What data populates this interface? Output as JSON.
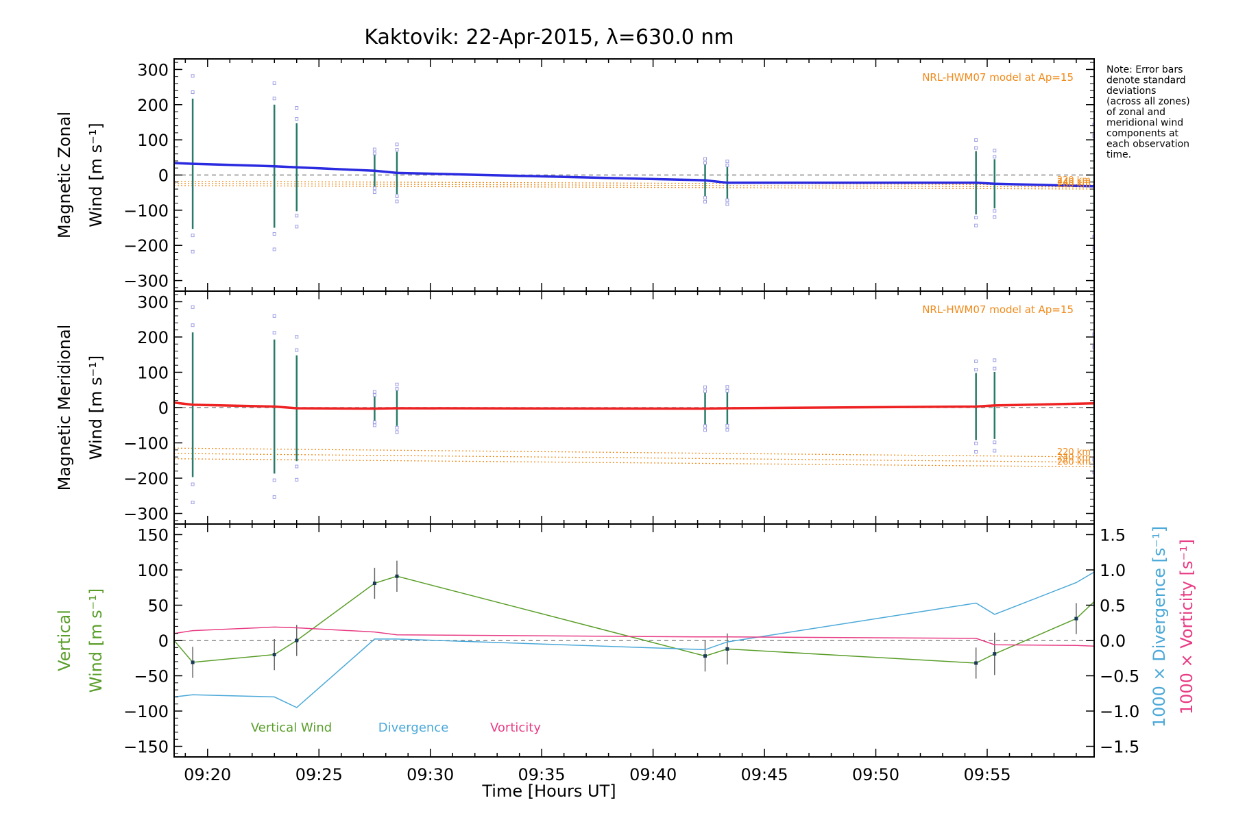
{
  "chart_data": {
    "type": "line",
    "title": "Kaktovik: 22-Apr-2015, λ=630.0 nm",
    "xlabel": "Time [Hours UT]",
    "xlim": [
      9.3083,
      9.9967
    ],
    "x_tick_labels": [
      {
        "x": 9.3333,
        "label": "09:20"
      },
      {
        "x": 9.4167,
        "label": "09:25"
      },
      {
        "x": 9.5,
        "label": "09:30"
      },
      {
        "x": 9.5833,
        "label": "09:35"
      },
      {
        "x": 9.6667,
        "label": "09:40"
      },
      {
        "x": 9.75,
        "label": "09:45"
      },
      {
        "x": 9.8333,
        "label": "09:50"
      },
      {
        "x": 9.9167,
        "label": "09:55"
      }
    ],
    "note": [
      "Note: Error bars",
      "denote standard",
      "deviations",
      "(across all zones)",
      "of zonal and",
      "meridional wind",
      "components at",
      "each observation",
      "time."
    ],
    "obs_times": [
      9.3222,
      9.3833,
      9.4,
      9.4583,
      9.475,
      9.7056,
      9.7222,
      9.9083,
      9.9222,
      9.9833
    ],
    "panels": [
      {
        "id": "zonal",
        "ylabel_lines": [
          "Magnetic Zonal",
          "Wind [m s⁻¹]"
        ],
        "ylim": [
          -330,
          330
        ],
        "y_ticks": [
          300,
          200,
          100,
          0,
          -100,
          -200,
          -300
        ],
        "model_label": "NRL-HWM07 model at Ap=15",
        "model_levels": [
          {
            "label": "220 km",
            "x": [
              9.3083,
              9.9967
            ],
            "y": [
              -18,
              -28
            ]
          },
          {
            "label": "240 km",
            "x": [
              9.3083,
              9.9967
            ],
            "y": [
              -24,
              -34
            ]
          },
          {
            "label": "260 km",
            "x": [
              9.3083,
              9.9967
            ],
            "y": [
              -30,
              -40
            ]
          }
        ],
        "series": [
          {
            "name": "Zonal wind",
            "color": "#2a2ae0",
            "x": [
              9.3083,
              9.3222,
              9.3833,
              9.4,
              9.4583,
              9.475,
              9.7056,
              9.7222,
              9.9083,
              9.9222,
              9.9967
            ],
            "y": [
              34,
              32,
              25,
              22,
              12,
              6,
              -15,
              -22,
              -22,
              -25,
              -32
            ],
            "err": [
              null,
              185,
              175,
              125,
              45,
              60,
              45,
              45,
              90,
              70,
              130
            ]
          }
        ]
      },
      {
        "id": "meridional",
        "ylabel_lines": [
          "Magnetic Meridional",
          "Wind [m s⁻¹]"
        ],
        "ylim": [
          -330,
          330
        ],
        "y_ticks": [
          300,
          200,
          100,
          0,
          -100,
          -200,
          -300
        ],
        "model_label": "NRL-HWM07 model at Ap=15",
        "model_levels": [
          {
            "label": "220 km",
            "x": [
              9.3083,
              9.9967
            ],
            "y": [
              -115,
              -140
            ]
          },
          {
            "label": "240 km",
            "x": [
              9.3083,
              9.9967
            ],
            "y": [
              -130,
              -155
            ]
          },
          {
            "label": "260 km",
            "x": [
              9.3083,
              9.9967
            ],
            "y": [
              -145,
              -168
            ]
          }
        ],
        "series": [
          {
            "name": "Meridional wind",
            "color": "#ee2222",
            "x": [
              9.3083,
              9.3222,
              9.3833,
              9.4,
              9.4583,
              9.475,
              9.7056,
              9.7222,
              9.9083,
              9.9222,
              9.9967
            ],
            "y": [
              14,
              8,
              3,
              -2,
              -3,
              -2,
              -3,
              -2,
              3,
              6,
              12
            ],
            "err": [
              null,
              205,
              190,
              150,
              35,
              50,
              45,
              45,
              95,
              95,
              145
            ]
          }
        ]
      },
      {
        "id": "vertical",
        "ylabel_lines": [
          "Vertical",
          "Wind [m s⁻¹]"
        ],
        "ylim": [
          -165,
          165
        ],
        "y_ticks": [
          150,
          100,
          50,
          0,
          -50,
          -100,
          -150
        ],
        "right_axis": {
          "ylim": [
            -1.65,
            1.65
          ],
          "y_ticks": [
            1.5,
            1.0,
            0.5,
            0.0,
            -0.5,
            -1.0,
            -1.5
          ],
          "y_tick_labels": [
            "1.5",
            "1.0",
            "0.5",
            "0.0",
            "−0.5",
            "−1.0",
            "−1.5"
          ],
          "label_divergence": "1000 × Divergence [s⁻¹]",
          "label_vorticity": "1000 × Vorticity [s⁻¹]"
        },
        "legend": [
          "Vertical Wind",
          "Divergence",
          "Vorticity"
        ],
        "series": [
          {
            "name": "Vertical Wind",
            "color": "#5a9e2a",
            "x": [
              9.3083,
              9.3222,
              9.3833,
              9.4,
              9.4583,
              9.475,
              9.7056,
              9.7222,
              9.9083,
              9.9222,
              9.9833,
              9.9967
            ],
            "y": [
              0,
              -31,
              -20,
              0,
              81,
              91,
              -22,
              -12,
              -32,
              -19,
              31,
              55
            ],
            "err": [
              null,
              22,
              22,
              22,
              22,
              22,
              22,
              22,
              22,
              30,
              22,
              null
            ],
            "axis": "left"
          },
          {
            "name": "Divergence",
            "color": "#4aa8d8",
            "x": [
              9.3083,
              9.3222,
              9.3833,
              9.4,
              9.4583,
              9.475,
              9.7056,
              9.7222,
              9.9083,
              9.9222,
              9.9833,
              9.9967
            ],
            "y": [
              -0.8,
              -0.77,
              -0.8,
              -0.95,
              0.02,
              0.02,
              -0.13,
              -0.02,
              0.53,
              0.37,
              0.82,
              0.97
            ],
            "axis": "right"
          },
          {
            "name": "Vorticity",
            "color": "#e83c84",
            "x": [
              9.3083,
              9.3222,
              9.3833,
              9.4,
              9.4583,
              9.475,
              9.7056,
              9.7222,
              9.9083,
              9.9222,
              9.9833,
              9.9967
            ],
            "y": [
              0.1,
              0.14,
              0.19,
              0.18,
              0.12,
              0.08,
              0.05,
              0.05,
              0.03,
              -0.06,
              -0.07,
              -0.08
            ],
            "axis": "right"
          }
        ]
      }
    ]
  }
}
